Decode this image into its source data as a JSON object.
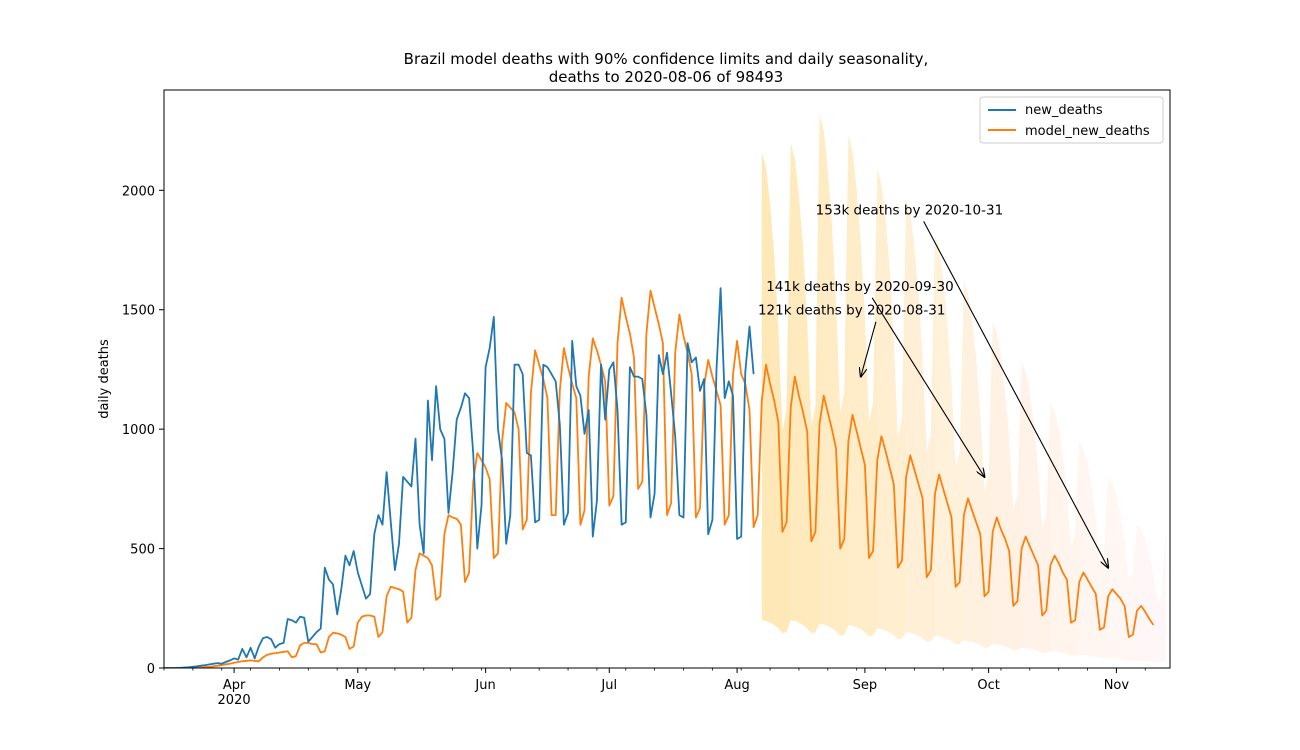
{
  "chart_data": {
    "type": "line",
    "title_line1": "Brazil model deaths with 90% confidence limits and daily seasonality,",
    "title_line2": "deaths to 2020-08-06 of 98493",
    "ylabel": "daily deaths",
    "xlabel": "",
    "x_range": [
      "2020-03-15",
      "2020-11-14"
    ],
    "ylim": [
      0,
      2420
    ],
    "y_ticks": [
      0,
      500,
      1000,
      1500,
      2000
    ],
    "x_ticks": [
      {
        "date": "2020-04-01",
        "label": "Apr",
        "year": "2020"
      },
      {
        "date": "2020-05-01",
        "label": "May",
        "year": ""
      },
      {
        "date": "2020-06-01",
        "label": "Jun",
        "year": ""
      },
      {
        "date": "2020-07-01",
        "label": "Jul",
        "year": ""
      },
      {
        "date": "2020-08-01",
        "label": "Aug",
        "year": ""
      },
      {
        "date": "2020-09-01",
        "label": "Sep",
        "year": ""
      },
      {
        "date": "2020-10-01",
        "label": "Oct",
        "year": ""
      },
      {
        "date": "2020-11-01",
        "label": "Nov",
        "year": ""
      }
    ],
    "grid": false,
    "legend_position": "top-right",
    "series": [
      {
        "name": "new_deaths",
        "color": "#1f77b4",
        "start_date": "2020-03-15",
        "values": [
          0,
          0,
          0,
          0,
          1,
          2,
          3,
          5,
          7,
          10,
          12,
          15,
          18,
          20,
          18,
          25,
          32,
          40,
          35,
          80,
          45,
          85,
          40,
          90,
          125,
          130,
          120,
          85,
          100,
          105,
          205,
          200,
          190,
          215,
          210,
          110,
          130,
          150,
          165,
          420,
          370,
          350,
          225,
          330,
          470,
          430,
          490,
          400,
          345,
          290,
          310,
          560,
          640,
          600,
          820,
          610,
          410,
          520,
          800,
          780,
          760,
          960,
          600,
          480,
          1120,
          870,
          1180,
          1000,
          960,
          650,
          820,
          1040,
          1090,
          1150,
          1130,
          900,
          500,
          680,
          1260,
          1340,
          1470,
          1000,
          870,
          520,
          640,
          1270,
          1270,
          1230,
          900,
          890,
          610,
          620,
          1270,
          1260,
          1230,
          1200,
          1020,
          600,
          650,
          1370,
          1180,
          1140,
          980,
          1080,
          550,
          700,
          1270,
          1040,
          1250,
          1280,
          1080,
          600,
          610,
          1260,
          1220,
          1220,
          1210,
          1060,
          630,
          730,
          1310,
          1230,
          1320,
          1150,
          970,
          640,
          630,
          1360,
          1280,
          1300,
          1160,
          1210,
          560,
          620,
          1250,
          1590,
          1130,
          1200,
          1140,
          540,
          550,
          1240,
          1430,
          1230
        ]
      },
      {
        "name": "model_new_deaths",
        "color": "#ff7f0e",
        "start_date": "2020-03-15",
        "values": [
          0,
          0,
          0,
          0,
          0,
          0,
          1,
          1,
          2,
          3,
          4,
          5,
          7,
          9,
          12,
          15,
          18,
          22,
          25,
          28,
          30,
          32,
          30,
          28,
          45,
          55,
          60,
          62,
          65,
          68,
          70,
          45,
          50,
          95,
          105,
          105,
          100,
          100,
          65,
          70,
          130,
          148,
          145,
          140,
          130,
          80,
          90,
          190,
          215,
          220,
          220,
          215,
          130,
          150,
          300,
          340,
          335,
          330,
          320,
          190,
          210,
          410,
          480,
          470,
          460,
          430,
          285,
          300,
          560,
          640,
          630,
          625,
          600,
          360,
          400,
          780,
          900,
          870,
          840,
          790,
          460,
          480,
          950,
          1110,
          1090,
          1070,
          1000,
          580,
          620,
          1150,
          1330,
          1270,
          1210,
          1130,
          640,
          640,
          1160,
          1340,
          1260,
          1190,
          1130,
          600,
          660,
          1220,
          1380,
          1330,
          1270,
          1200,
          680,
          720,
          1360,
          1550,
          1470,
          1400,
          1300,
          750,
          780,
          1400,
          1580,
          1510,
          1440,
          1360,
          640,
          690,
          1320,
          1480,
          1390,
          1320,
          1230,
          630,
          670,
          1180,
          1290,
          1220,
          1160,
          1100,
          600,
          640,
          1230,
          1370,
          1230,
          1190,
          1080,
          590,
          640,
          1120,
          1270,
          1190,
          1120,
          1030,
          570,
          610,
          1090,
          1220,
          1140,
          1070,
          990,
          530,
          570,
          1020,
          1140,
          1070,
          1000,
          920,
          500,
          540,
          950,
          1060,
          990,
          920,
          850,
          460,
          490,
          870,
          970,
          910,
          840,
          770,
          420,
          450,
          800,
          890,
          830,
          770,
          710,
          380,
          410,
          730,
          810,
          750,
          690,
          630,
          340,
          360,
          640,
          710,
          660,
          610,
          560,
          300,
          320,
          570,
          630,
          580,
          540,
          490,
          260,
          280,
          500,
          550,
          510,
          470,
          430,
          220,
          240,
          430,
          470,
          440,
          400,
          370,
          190,
          200,
          360,
          400,
          370,
          340,
          310,
          160,
          170,
          300,
          330,
          310,
          290,
          260,
          130,
          140,
          240,
          260,
          235,
          205,
          180
        ]
      }
    ],
    "ci_band": {
      "start_date": "2020-08-07",
      "upper_peak": [
        2160,
        2200,
        2320,
        2230,
        2090,
        1960,
        1810,
        1620,
        1450,
        1280,
        1110,
        950,
        800,
        600
      ],
      "lower_peak": [
        200,
        200,
        185,
        180,
        165,
        150,
        135,
        115,
        100,
        85,
        70,
        55,
        40,
        30
      ]
    },
    "annotations": [
      {
        "text": "121k deaths by 2020-08-31",
        "target_date": "2020-08-31",
        "target_value": 1220,
        "text_value": 1500
      },
      {
        "text": "141k deaths by 2020-09-30",
        "target_date": "2020-09-30",
        "target_value": 800,
        "text_value": 1600
      },
      {
        "text": "153k deaths by 2020-10-31",
        "target_date": "2020-10-30",
        "target_value": 420,
        "text_value": 1920
      }
    ],
    "text_anchor_dates": [
      "2020-08-08",
      "2020-08-10",
      "2020-08-22"
    ]
  }
}
